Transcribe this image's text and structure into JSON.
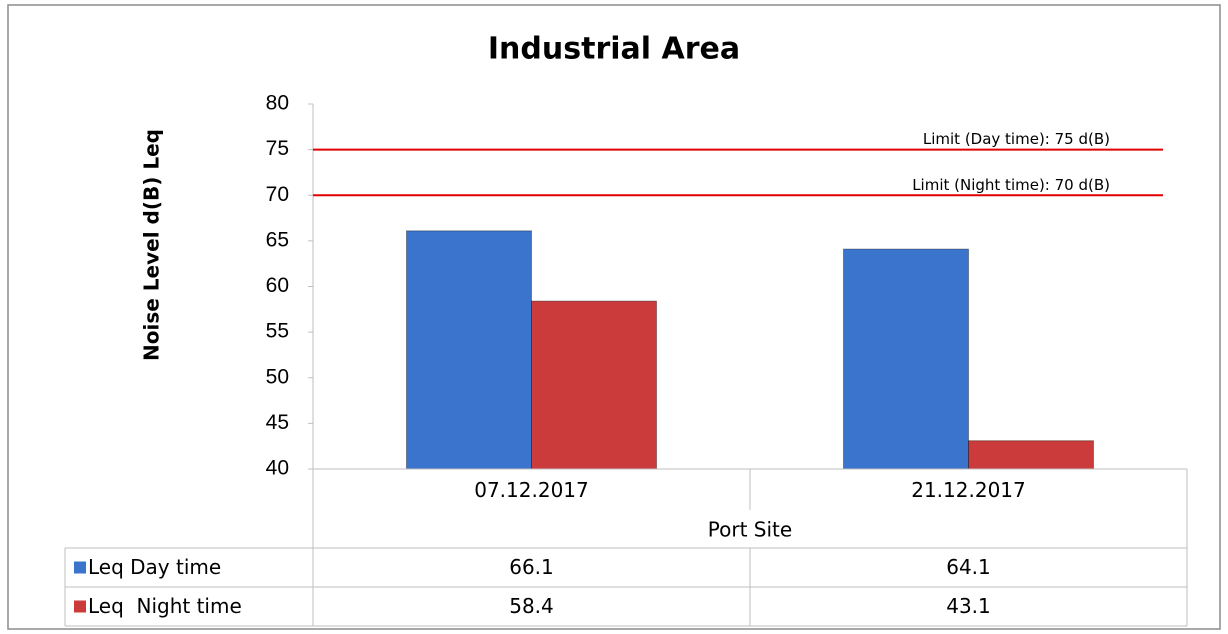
{
  "chart_data": {
    "type": "bar",
    "title": "Industrial Area",
    "y_label": "Noise Level d(B) Leq",
    "x_label": "Port Site",
    "categories": [
      "07.12.2017",
      "21.12.2017"
    ],
    "series": [
      {
        "name": "Leq Day time",
        "color": "#3b74cc",
        "values": [
          66.1,
          64.1
        ]
      },
      {
        "name": "Leq  Night time",
        "color": "#cc3b3b",
        "values": [
          58.4,
          43.1
        ]
      }
    ],
    "limits": [
      {
        "value": 75,
        "label": "Limit (Day time): 75 d(B)",
        "color": "#e00000"
      },
      {
        "value": 70,
        "label": "Limit (Night time): 70 d(B)",
        "color": "#e00000"
      }
    ],
    "ylim": [
      40,
      80
    ],
    "yticks": [
      40,
      45,
      50,
      55,
      60,
      65,
      70,
      75,
      80
    ],
    "data_table": true
  }
}
